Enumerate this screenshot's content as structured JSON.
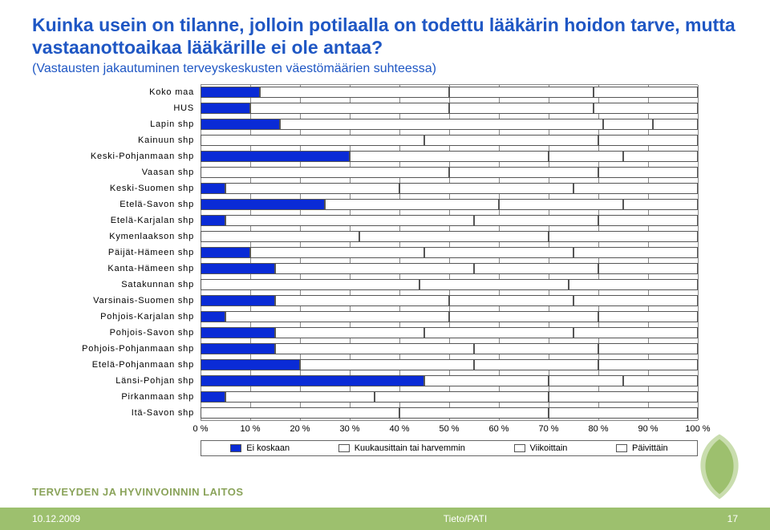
{
  "title": "Kuinka usein on tilanne, jolloin potilaalla on todettu lääkärin hoidon tarve, mutta vastaanottoaikaa lääkärille ei ole antaa?",
  "subtitle": "(Vastausten jakautuminen terveyskeskusten väestömäärien suhteessa)",
  "title_color": "#1f57c4",
  "subtitle_color": "#1f57c4",
  "chart": {
    "type": "stacked-bar-horizontal",
    "xlim": [
      0,
      100
    ],
    "xtick_step": 10,
    "xtick_suffix": " %",
    "grid_color": "#888888",
    "border_color": "#555555",
    "categories": [
      "Koko maa",
      "HUS",
      "Lapin shp",
      "Kainuun shp",
      "Keski-Pohjanmaan shp",
      "Vaasan shp",
      "Keski-Suomen shp",
      "Etelä-Savon shp",
      "Etelä-Karjalan shp",
      "Kymenlaakson shp",
      "Päijät-Hämeen shp",
      "Kanta-Hämeen shp",
      "Satakunnan shp",
      "Varsinais-Suomen shp",
      "Pohjois-Karjalan shp",
      "Pohjois-Savon shp",
      "Pohjois-Pohjanmaan shp",
      "Etelä-Pohjanmaan shp",
      "Länsi-Pohjan shp",
      "Pirkanmaan shp",
      "Itä-Savon shp"
    ],
    "series": [
      {
        "name": "Ei koskaan",
        "color": "#0a2bd6"
      },
      {
        "name": "Kuukausittain tai harvemmin",
        "color": "#ffffff"
      },
      {
        "name": "Viikoittain",
        "color": "#ffffff"
      },
      {
        "name": "Päivittäin",
        "color": "#ffffff"
      }
    ],
    "values": [
      [
        12,
        38,
        29,
        21
      ],
      [
        10,
        40,
        29,
        21
      ],
      [
        16,
        65,
        10,
        9
      ],
      [
        0,
        45,
        35,
        20
      ],
      [
        30,
        40,
        15,
        15
      ],
      [
        0,
        50,
        30,
        20
      ],
      [
        5,
        35,
        35,
        25
      ],
      [
        25,
        35,
        25,
        15
      ],
      [
        5,
        50,
        25,
        20
      ],
      [
        0,
        32,
        38,
        30
      ],
      [
        10,
        35,
        30,
        25
      ],
      [
        15,
        40,
        25,
        20
      ],
      [
        0,
        44,
        30,
        26
      ],
      [
        15,
        35,
        25,
        25
      ],
      [
        5,
        45,
        30,
        20
      ],
      [
        15,
        30,
        30,
        25
      ],
      [
        15,
        40,
        25,
        20
      ],
      [
        20,
        35,
        25,
        20
      ],
      [
        45,
        25,
        15,
        15
      ],
      [
        5,
        30,
        35,
        30
      ],
      [
        0,
        40,
        30,
        30
      ]
    ],
    "label_fontsize": 11
  },
  "legend_labels": [
    "Ei koskaan",
    "Kuukausittain tai harvemmin",
    "Viikoittain",
    "Päivittäin"
  ],
  "org_label": "TERVEYDEN JA HYVINVOINNIN LAITOS",
  "org_color": "#8aa35a",
  "leaf_colors": {
    "outer": "#c9ddae",
    "inner": "#9dc06e"
  },
  "footer": {
    "bg_color": "#9dc06e",
    "date": "10.12.2009",
    "center": "Tieto/PATI",
    "page": "17"
  }
}
